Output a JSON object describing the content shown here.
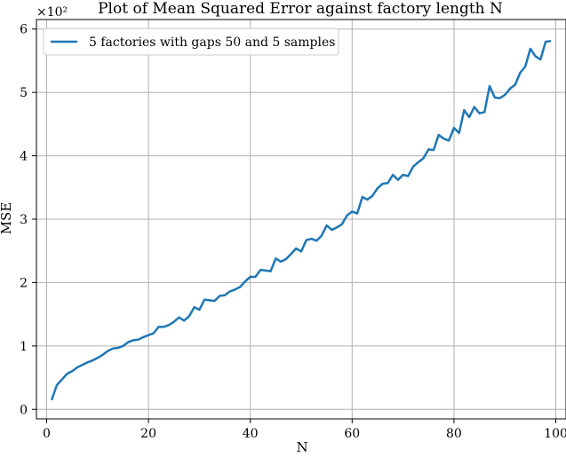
{
  "chart_data": {
    "type": "line",
    "title": "Plot of Mean Squared Error against factory length N",
    "xlabel": "N",
    "ylabel": "MSE",
    "y_multiplier_label": "×10²",
    "y_scale_factor": 100,
    "xlim": [
      -2,
      102
    ],
    "ylim": [
      -0.15,
      6.15
    ],
    "xticks": [
      0,
      20,
      40,
      60,
      80,
      100
    ],
    "yticks": [
      0,
      1,
      2,
      3,
      4,
      5,
      6
    ],
    "grid": true,
    "legend_position": "top-left",
    "series": [
      {
        "name": "5 factories with gaps 50 and 5 samples",
        "color": "#1f77b4",
        "x": [
          1,
          2,
          3,
          4,
          5,
          6,
          7,
          8,
          9,
          10,
          11,
          12,
          13,
          14,
          15,
          16,
          17,
          18,
          19,
          20,
          21,
          22,
          23,
          24,
          25,
          26,
          27,
          28,
          29,
          30,
          31,
          32,
          33,
          34,
          35,
          36,
          37,
          38,
          39,
          40,
          41,
          42,
          43,
          44,
          45,
          46,
          47,
          48,
          49,
          50,
          51,
          52,
          53,
          54,
          55,
          56,
          57,
          58,
          59,
          60,
          61,
          62,
          63,
          64,
          65,
          66,
          67,
          68,
          69,
          70,
          71,
          72,
          73,
          74,
          75,
          76,
          77,
          78,
          79,
          80,
          81,
          82,
          83,
          84,
          85,
          86,
          87,
          88,
          89,
          90,
          91,
          92,
          93,
          94,
          95,
          96,
          97,
          98,
          99
        ],
        "values": [
          0.15,
          0.38,
          0.47,
          0.56,
          0.6,
          0.66,
          0.7,
          0.74,
          0.77,
          0.81,
          0.86,
          0.92,
          0.96,
          0.97,
          1.0,
          1.06,
          1.09,
          1.1,
          1.14,
          1.17,
          1.2,
          1.3,
          1.3,
          1.33,
          1.38,
          1.45,
          1.4,
          1.47,
          1.61,
          1.57,
          1.73,
          1.72,
          1.71,
          1.79,
          1.8,
          1.86,
          1.89,
          1.93,
          2.02,
          2.09,
          2.09,
          2.2,
          2.19,
          2.18,
          2.38,
          2.33,
          2.37,
          2.45,
          2.54,
          2.49,
          2.67,
          2.69,
          2.66,
          2.74,
          2.9,
          2.83,
          2.87,
          2.92,
          3.06,
          3.12,
          3.09,
          3.35,
          3.31,
          3.37,
          3.49,
          3.56,
          3.57,
          3.7,
          3.62,
          3.7,
          3.68,
          3.83,
          3.9,
          3.96,
          4.1,
          4.09,
          4.33,
          4.27,
          4.24,
          4.44,
          4.36,
          4.72,
          4.61,
          4.77,
          4.67,
          4.69,
          5.1,
          4.92,
          4.91,
          4.96,
          5.06,
          5.12,
          5.31,
          5.41,
          5.69,
          5.57,
          5.52,
          5.8,
          5.81
        ]
      }
    ]
  }
}
